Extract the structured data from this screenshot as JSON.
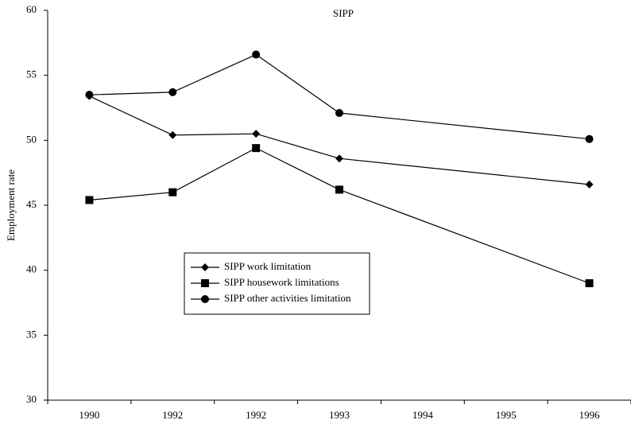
{
  "chart_data": {
    "type": "line",
    "title": "SIPP",
    "y_label": "Employment rate",
    "categories": [
      "1990",
      "1992",
      "1992",
      "1993",
      "1994",
      "1995",
      "1996"
    ],
    "series": [
      {
        "name": "SIPP work limitation",
        "color": "#000000",
        "marker": "diamond",
        "values": [
          53.4,
          50.4,
          50.5,
          48.6,
          null,
          null,
          46.6
        ]
      },
      {
        "name": "SIPP housework limitations",
        "color": "#000000",
        "marker": "square",
        "values": [
          45.4,
          46.0,
          49.4,
          46.2,
          null,
          null,
          39.0
        ]
      },
      {
        "name": "SIPP other activities limitation",
        "color": "#000000",
        "marker": "circle",
        "values": [
          53.5,
          53.7,
          56.6,
          52.1,
          null,
          null,
          50.1
        ]
      }
    ],
    "connect_gaps": true,
    "ylim": [
      30,
      60
    ],
    "yticks": [
      30,
      35,
      40,
      45,
      50,
      55,
      60
    ],
    "grid": false
  }
}
